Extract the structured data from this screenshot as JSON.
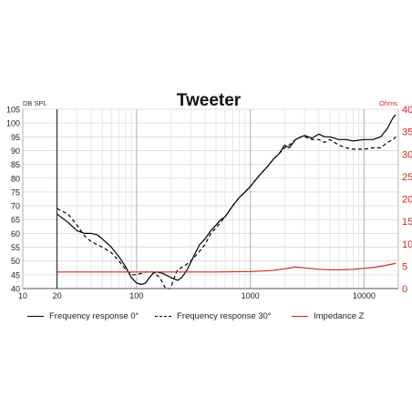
{
  "chart_data": {
    "type": "line",
    "title": "Tweeter",
    "left_axis": {
      "label": "DB SPL",
      "ylim": [
        40,
        105
      ],
      "ticks": [
        40,
        45,
        50,
        55,
        60,
        65,
        70,
        75,
        80,
        85,
        90,
        95,
        100,
        105
      ]
    },
    "right_axis": {
      "label": "Ohms",
      "ylim": [
        0,
        40
      ],
      "ticks": [
        0,
        5,
        10,
        15,
        20,
        25,
        30,
        35,
        40
      ],
      "color": "#d8261c"
    },
    "x_axis": {
      "scale": "log",
      "xlim": [
        10,
        20000
      ],
      "tick_labels": [
        {
          "value": 10,
          "label": "10"
        },
        {
          "value": 20,
          "label": "20"
        },
        {
          "value": 100,
          "label": "100"
        },
        {
          "value": 1000,
          "label": "1000"
        },
        {
          "value": 10000,
          "label": "10000"
        }
      ]
    },
    "grid": true,
    "legend_position": "bottom",
    "series": [
      {
        "name": "Frequency response 0°",
        "axis": "left",
        "style": "solid",
        "color": "#000000",
        "points": [
          [
            20,
            67
          ],
          [
            25,
            64
          ],
          [
            30,
            61
          ],
          [
            35,
            60
          ],
          [
            40,
            60
          ],
          [
            45,
            59.5
          ],
          [
            50,
            58
          ],
          [
            60,
            55
          ],
          [
            70,
            51.5
          ],
          [
            80,
            48
          ],
          [
            90,
            44
          ],
          [
            100,
            42
          ],
          [
            110,
            41.5
          ],
          [
            120,
            42
          ],
          [
            130,
            44
          ],
          [
            140,
            45.5
          ],
          [
            150,
            46
          ],
          [
            170,
            45.5
          ],
          [
            200,
            44
          ],
          [
            230,
            43
          ],
          [
            250,
            44
          ],
          [
            280,
            47
          ],
          [
            320,
            52
          ],
          [
            360,
            56
          ],
          [
            400,
            58
          ],
          [
            450,
            61
          ],
          [
            500,
            63
          ],
          [
            550,
            65
          ],
          [
            600,
            66
          ],
          [
            700,
            70
          ],
          [
            800,
            73
          ],
          [
            900,
            75
          ],
          [
            1000,
            77
          ],
          [
            1200,
            81
          ],
          [
            1400,
            84
          ],
          [
            1600,
            87
          ],
          [
            1800,
            89
          ],
          [
            2000,
            92
          ],
          [
            2200,
            91
          ],
          [
            2500,
            94
          ],
          [
            2800,
            95
          ],
          [
            3000,
            95.5
          ],
          [
            3500,
            94.5
          ],
          [
            4000,
            96
          ],
          [
            4500,
            95
          ],
          [
            5000,
            95
          ],
          [
            6000,
            94
          ],
          [
            7000,
            94
          ],
          [
            8000,
            93.5
          ],
          [
            10000,
            94
          ],
          [
            12000,
            94
          ],
          [
            14000,
            95
          ],
          [
            16000,
            98
          ],
          [
            18000,
            102
          ],
          [
            19000,
            103
          ]
        ]
      },
      {
        "name": "Frequency response 30°",
        "axis": "left",
        "style": "dashed",
        "color": "#000000",
        "points": [
          [
            20,
            69
          ],
          [
            25,
            67
          ],
          [
            30,
            63
          ],
          [
            35,
            59
          ],
          [
            40,
            57
          ],
          [
            50,
            55
          ],
          [
            60,
            53
          ],
          [
            70,
            50
          ],
          [
            80,
            47
          ],
          [
            90,
            45
          ],
          [
            100,
            45
          ],
          [
            110,
            45.5
          ],
          [
            120,
            46
          ],
          [
            140,
            46
          ],
          [
            160,
            44
          ],
          [
            180,
            40
          ],
          [
            200,
            40
          ],
          [
            210,
            43
          ],
          [
            230,
            47
          ],
          [
            260,
            48
          ],
          [
            300,
            50
          ],
          [
            350,
            53
          ],
          [
            400,
            56
          ],
          [
            450,
            60
          ],
          [
            500,
            62
          ],
          [
            550,
            64
          ],
          [
            600,
            66
          ],
          [
            700,
            70
          ],
          [
            800,
            73
          ],
          [
            900,
            75
          ],
          [
            1000,
            77
          ],
          [
            1200,
            81
          ],
          [
            1400,
            84
          ],
          [
            1600,
            87
          ],
          [
            1800,
            89
          ],
          [
            2000,
            91
          ],
          [
            2200,
            92
          ],
          [
            2500,
            94
          ],
          [
            2800,
            95
          ],
          [
            3000,
            95
          ],
          [
            3500,
            94
          ],
          [
            4000,
            94
          ],
          [
            4500,
            93
          ],
          [
            5000,
            94
          ],
          [
            6000,
            92
          ],
          [
            7000,
            91
          ],
          [
            8000,
            90.5
          ],
          [
            10000,
            90.5
          ],
          [
            12000,
            91
          ],
          [
            14000,
            91
          ],
          [
            16000,
            93
          ],
          [
            18000,
            94
          ],
          [
            19000,
            95
          ]
        ]
      },
      {
        "name": "Impedance Z",
        "axis": "right",
        "style": "solid",
        "color": "#d8261c",
        "points": [
          [
            20,
            3.7
          ],
          [
            50,
            3.7
          ],
          [
            100,
            3.7
          ],
          [
            200,
            3.7
          ],
          [
            500,
            3.7
          ],
          [
            1000,
            3.8
          ],
          [
            1500,
            4.0
          ],
          [
            2000,
            4.4
          ],
          [
            2500,
            4.8
          ],
          [
            3000,
            4.6
          ],
          [
            4000,
            4.3
          ],
          [
            5000,
            4.2
          ],
          [
            6000,
            4.2
          ],
          [
            8000,
            4.3
          ],
          [
            10000,
            4.5
          ],
          [
            12000,
            4.7
          ],
          [
            15000,
            5.1
          ],
          [
            18000,
            5.5
          ],
          [
            19000,
            5.7
          ]
        ]
      }
    ]
  }
}
